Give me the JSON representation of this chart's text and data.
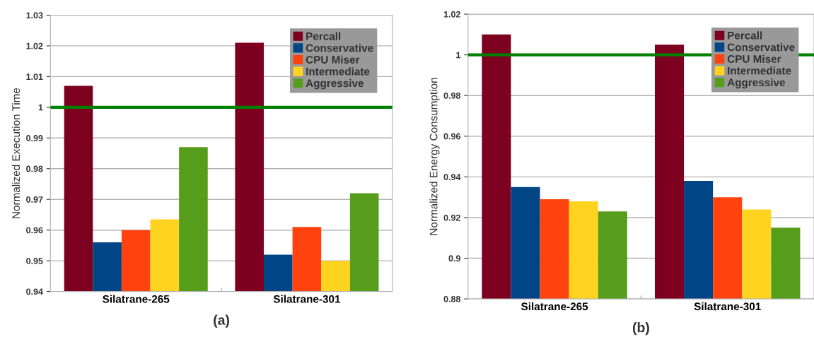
{
  "chart_data": [
    {
      "type": "bar",
      "xlabel": "(a)",
      "ylabel": "Normalized Execution Time",
      "categories": [
        "Silatrane-265",
        "Silatrane-301"
      ],
      "series": [
        {
          "name": "Percall",
          "color": "#7e0021",
          "values": [
            1.007,
            1.021
          ]
        },
        {
          "name": "Conservative",
          "color": "#004586",
          "values": [
            0.956,
            0.952
          ]
        },
        {
          "name": "CPU Miser",
          "color": "#ff420e",
          "values": [
            0.96,
            0.961
          ]
        },
        {
          "name": "Intermediate",
          "color": "#ffd320",
          "values": [
            0.9635,
            0.95
          ]
        },
        {
          "name": "Aggressive",
          "color": "#579d1c",
          "values": [
            0.987,
            0.972
          ]
        }
      ],
      "ylim": [
        0.94,
        1.03
      ],
      "yticks": [
        0.94,
        0.95,
        0.96,
        0.97,
        0.98,
        0.99,
        1,
        1.01,
        1.02,
        1.03
      ],
      "ref_lines": [
        {
          "axis": "y",
          "value": 1,
          "color": "#008000"
        }
      ],
      "grid": "y",
      "legend": "top right"
    },
    {
      "type": "bar",
      "xlabel": "(b)",
      "ylabel": "Normalized Energy Consumption",
      "categories": [
        "Silatrane-265",
        "Silatrane-301"
      ],
      "series": [
        {
          "name": "Percall",
          "color": "#7e0021",
          "values": [
            1.01,
            1.005
          ]
        },
        {
          "name": "Conservative",
          "color": "#004586",
          "values": [
            0.935,
            0.938
          ]
        },
        {
          "name": "CPU Miser",
          "color": "#ff420e",
          "values": [
            0.929,
            0.93
          ]
        },
        {
          "name": "Intermediate",
          "color": "#ffd320",
          "values": [
            0.928,
            0.924
          ]
        },
        {
          "name": "Aggressive",
          "color": "#579d1c",
          "values": [
            0.923,
            0.915
          ]
        }
      ],
      "ylim": [
        0.88,
        1.02
      ],
      "yticks": [
        0.88,
        0.9,
        0.92,
        0.94,
        0.96,
        0.98,
        1,
        1.02
      ],
      "ref_lines": [
        {
          "axis": "y",
          "value": 1,
          "color": "#008000"
        }
      ],
      "grid": "y",
      "legend": "top right"
    }
  ]
}
